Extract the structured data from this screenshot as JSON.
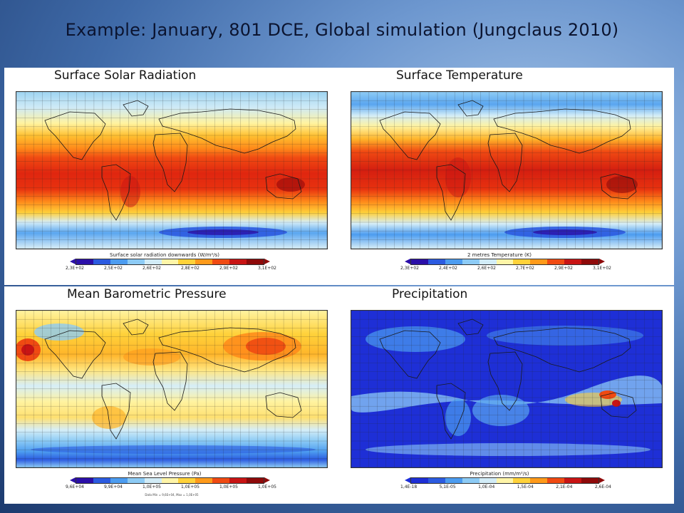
{
  "slide": {
    "title": "Example:   January,  801 DCE, Global simulation (Jungclaus 2010)"
  },
  "panels": {
    "solar": {
      "title": "Surface Solar Radiation",
      "colorbar_title": "Surface solar radiation downwards (W/m²/s)",
      "ticks": [
        "2,3E+02",
        "2,5E+02",
        "2,6E+02",
        "2,8E+02",
        "2,9E+02",
        "3,1E+02"
      ],
      "colors": [
        "#2b0fa8",
        "#2c5be0",
        "#4c9cf0",
        "#8dcbf5",
        "#d2ecf7",
        "#fff5a8",
        "#ffd23a",
        "#ff9a1a",
        "#f04a12",
        "#c81414",
        "#8e0a0a"
      ]
    },
    "temperature": {
      "title": "Surface Temperature",
      "colorbar_title": "2 metres Temperature (K)",
      "ticks": [
        "2,3E+02",
        "2,4E+02",
        "2,6E+02",
        "2,7E+02",
        "2,9E+02",
        "3,1E+02"
      ],
      "colors": [
        "#2b0fa8",
        "#2c5be0",
        "#4c9cf0",
        "#8dcbf5",
        "#d2ecf7",
        "#fff5a8",
        "#ffd23a",
        "#ff9a1a",
        "#f04a12",
        "#c81414",
        "#8e0a0a"
      ]
    },
    "pressure": {
      "title": "Mean Barometric Pressure",
      "colorbar_title": "Mean Sea Level Pressure (Pa)",
      "ticks": [
        "9,6E+04",
        "9,9E+04",
        "1,0E+05",
        "1,0E+05",
        "1,0E+05",
        "1,0E+05"
      ],
      "note": "Data Min = 9,6E+04, Max = 1,0E+05",
      "colors": [
        "#2b0fa8",
        "#2c5be0",
        "#4c9cf0",
        "#8dcbf5",
        "#d2ecf7",
        "#fff5a8",
        "#ffd23a",
        "#ff9a1a",
        "#f04a12",
        "#c81414",
        "#8e0a0a"
      ]
    },
    "precipitation": {
      "title": "Precipitation",
      "colorbar_title": "Precipitation (mm/m²/s)",
      "ticks": [
        "1,4E-18",
        "5,1E-05",
        "1,0E-04",
        "1,5E-04",
        "2,1E-04",
        "2,6E-04"
      ],
      "colors": [
        "#1e2fd6",
        "#2c5be0",
        "#4c9cf0",
        "#8dcbf5",
        "#d2ecf7",
        "#fff5a8",
        "#ffd23a",
        "#ff9a1a",
        "#f04a12",
        "#c81414",
        "#8e0a0a"
      ]
    }
  }
}
